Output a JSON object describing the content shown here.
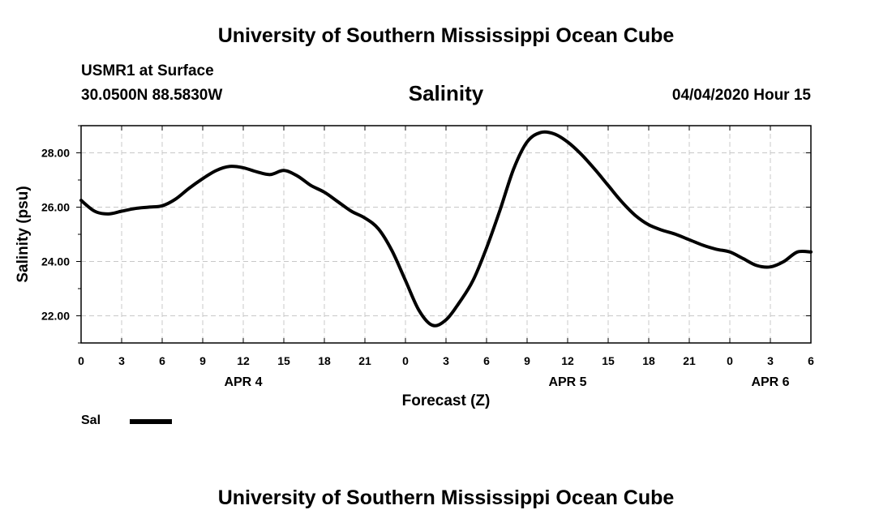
{
  "header": {
    "title": "University of Southern Mississippi Ocean Cube"
  },
  "station": {
    "name": "USMR1 at Surface",
    "coords": "30.0500N 88.5830W"
  },
  "chart_title": "Salinity",
  "datetime": "04/04/2020 Hour 15",
  "footer": {
    "title": "University of Southern Mississippi Ocean Cube"
  },
  "legend": {
    "label": "Sal",
    "color": "#000000"
  },
  "chart_data": {
    "type": "line",
    "title": "Salinity",
    "xlabel": "Forecast (Z)",
    "ylabel": "Salinity (psu)",
    "xlim": [
      0,
      54
    ],
    "ylim": [
      21.0,
      29.0
    ],
    "grid": true,
    "x_ticks": [
      0,
      3,
      6,
      9,
      12,
      15,
      18,
      21,
      24,
      27,
      30,
      33,
      36,
      39,
      42,
      45,
      48,
      51,
      54
    ],
    "x_tick_labels": [
      "0",
      "3",
      "6",
      "9",
      "12",
      "15",
      "18",
      "21",
      "0",
      "3",
      "6",
      "9",
      "12",
      "15",
      "18",
      "21",
      "0",
      "3",
      "6"
    ],
    "y_ticks": [
      22,
      24,
      26,
      28
    ],
    "y_tick_labels": [
      "22.00",
      "24.00",
      "26.00",
      "28.00"
    ],
    "date_labels": [
      {
        "x": 12,
        "label": "APR 4"
      },
      {
        "x": 36,
        "label": "APR 5"
      },
      {
        "x": 51,
        "label": "APR 6"
      }
    ],
    "series": [
      {
        "name": "Sal",
        "x": [
          0,
          1,
          2,
          3,
          4,
          5,
          6,
          7,
          8,
          9,
          10,
          11,
          12,
          13,
          14,
          15,
          16,
          17,
          18,
          19,
          20,
          21,
          22,
          23,
          24,
          25,
          26,
          27,
          28,
          29,
          30,
          31,
          32,
          33,
          34,
          35,
          36,
          37,
          38,
          39,
          40,
          41,
          42,
          43,
          44,
          45,
          46,
          47,
          48,
          49,
          50,
          51,
          52,
          53,
          54
        ],
        "values": [
          26.25,
          25.85,
          25.75,
          25.85,
          25.95,
          26.0,
          26.05,
          26.3,
          26.7,
          27.05,
          27.35,
          27.5,
          27.45,
          27.3,
          27.2,
          27.35,
          27.15,
          26.8,
          26.55,
          26.2,
          25.85,
          25.6,
          25.2,
          24.4,
          23.3,
          22.2,
          21.65,
          21.85,
          22.5,
          23.3,
          24.5,
          25.9,
          27.4,
          28.4,
          28.75,
          28.7,
          28.4,
          27.95,
          27.4,
          26.8,
          26.2,
          25.7,
          25.35,
          25.15,
          25.0,
          24.8,
          24.6,
          24.45,
          24.35,
          24.1,
          23.85,
          23.8,
          24.0,
          24.35,
          24.35
        ]
      }
    ]
  }
}
